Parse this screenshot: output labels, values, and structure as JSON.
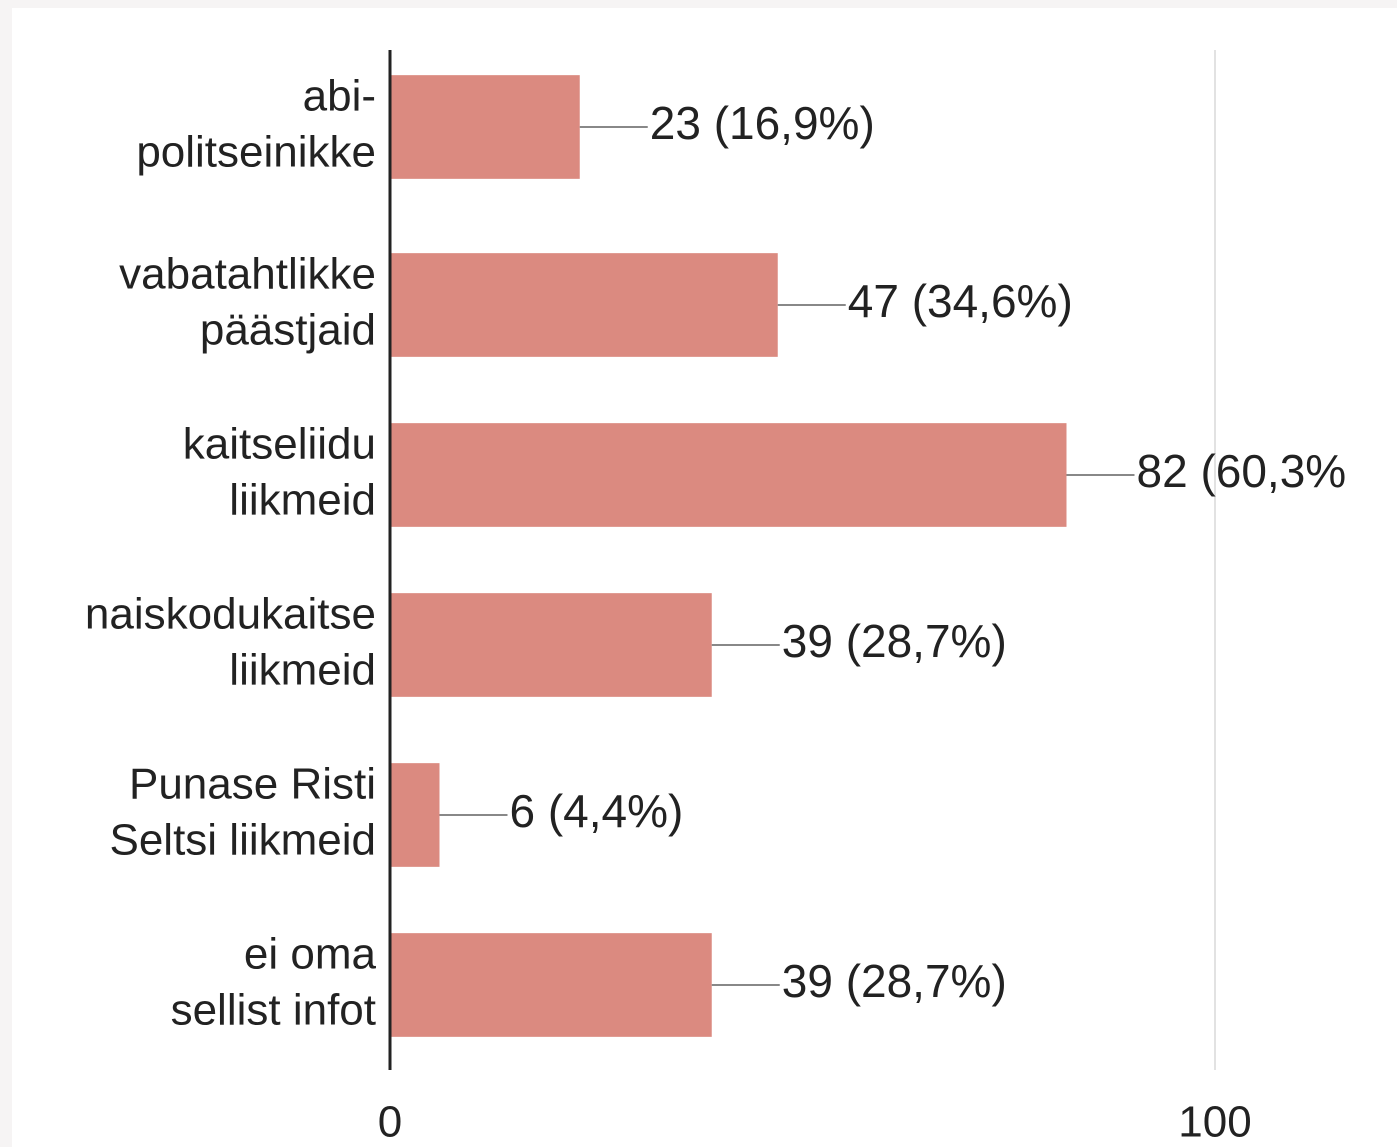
{
  "chart_data": {
    "type": "hbar",
    "categories": [
      [
        "abi-",
        "politseinikke"
      ],
      [
        "vabatahtlikke",
        "päästjaid"
      ],
      [
        "kaitseliidu",
        "liikmeid"
      ],
      [
        "naiskodukaitse",
        "liikmeid"
      ],
      [
        "Punase Risti",
        "Seltsi liikmeid"
      ],
      [
        "ei oma",
        "sellist infot"
      ]
    ],
    "values": [
      23,
      47,
      82,
      39,
      6,
      39
    ],
    "value_labels": [
      "23 (16,9%)",
      "47 (34,6%)",
      "82 (60,3%",
      "39 (28,7%)",
      "6 (4,4%)",
      "39 (28,7%)"
    ],
    "color": "#db8a80",
    "xlim": [
      0,
      100
    ],
    "xticks": [
      0,
      100
    ],
    "grid": true
  }
}
